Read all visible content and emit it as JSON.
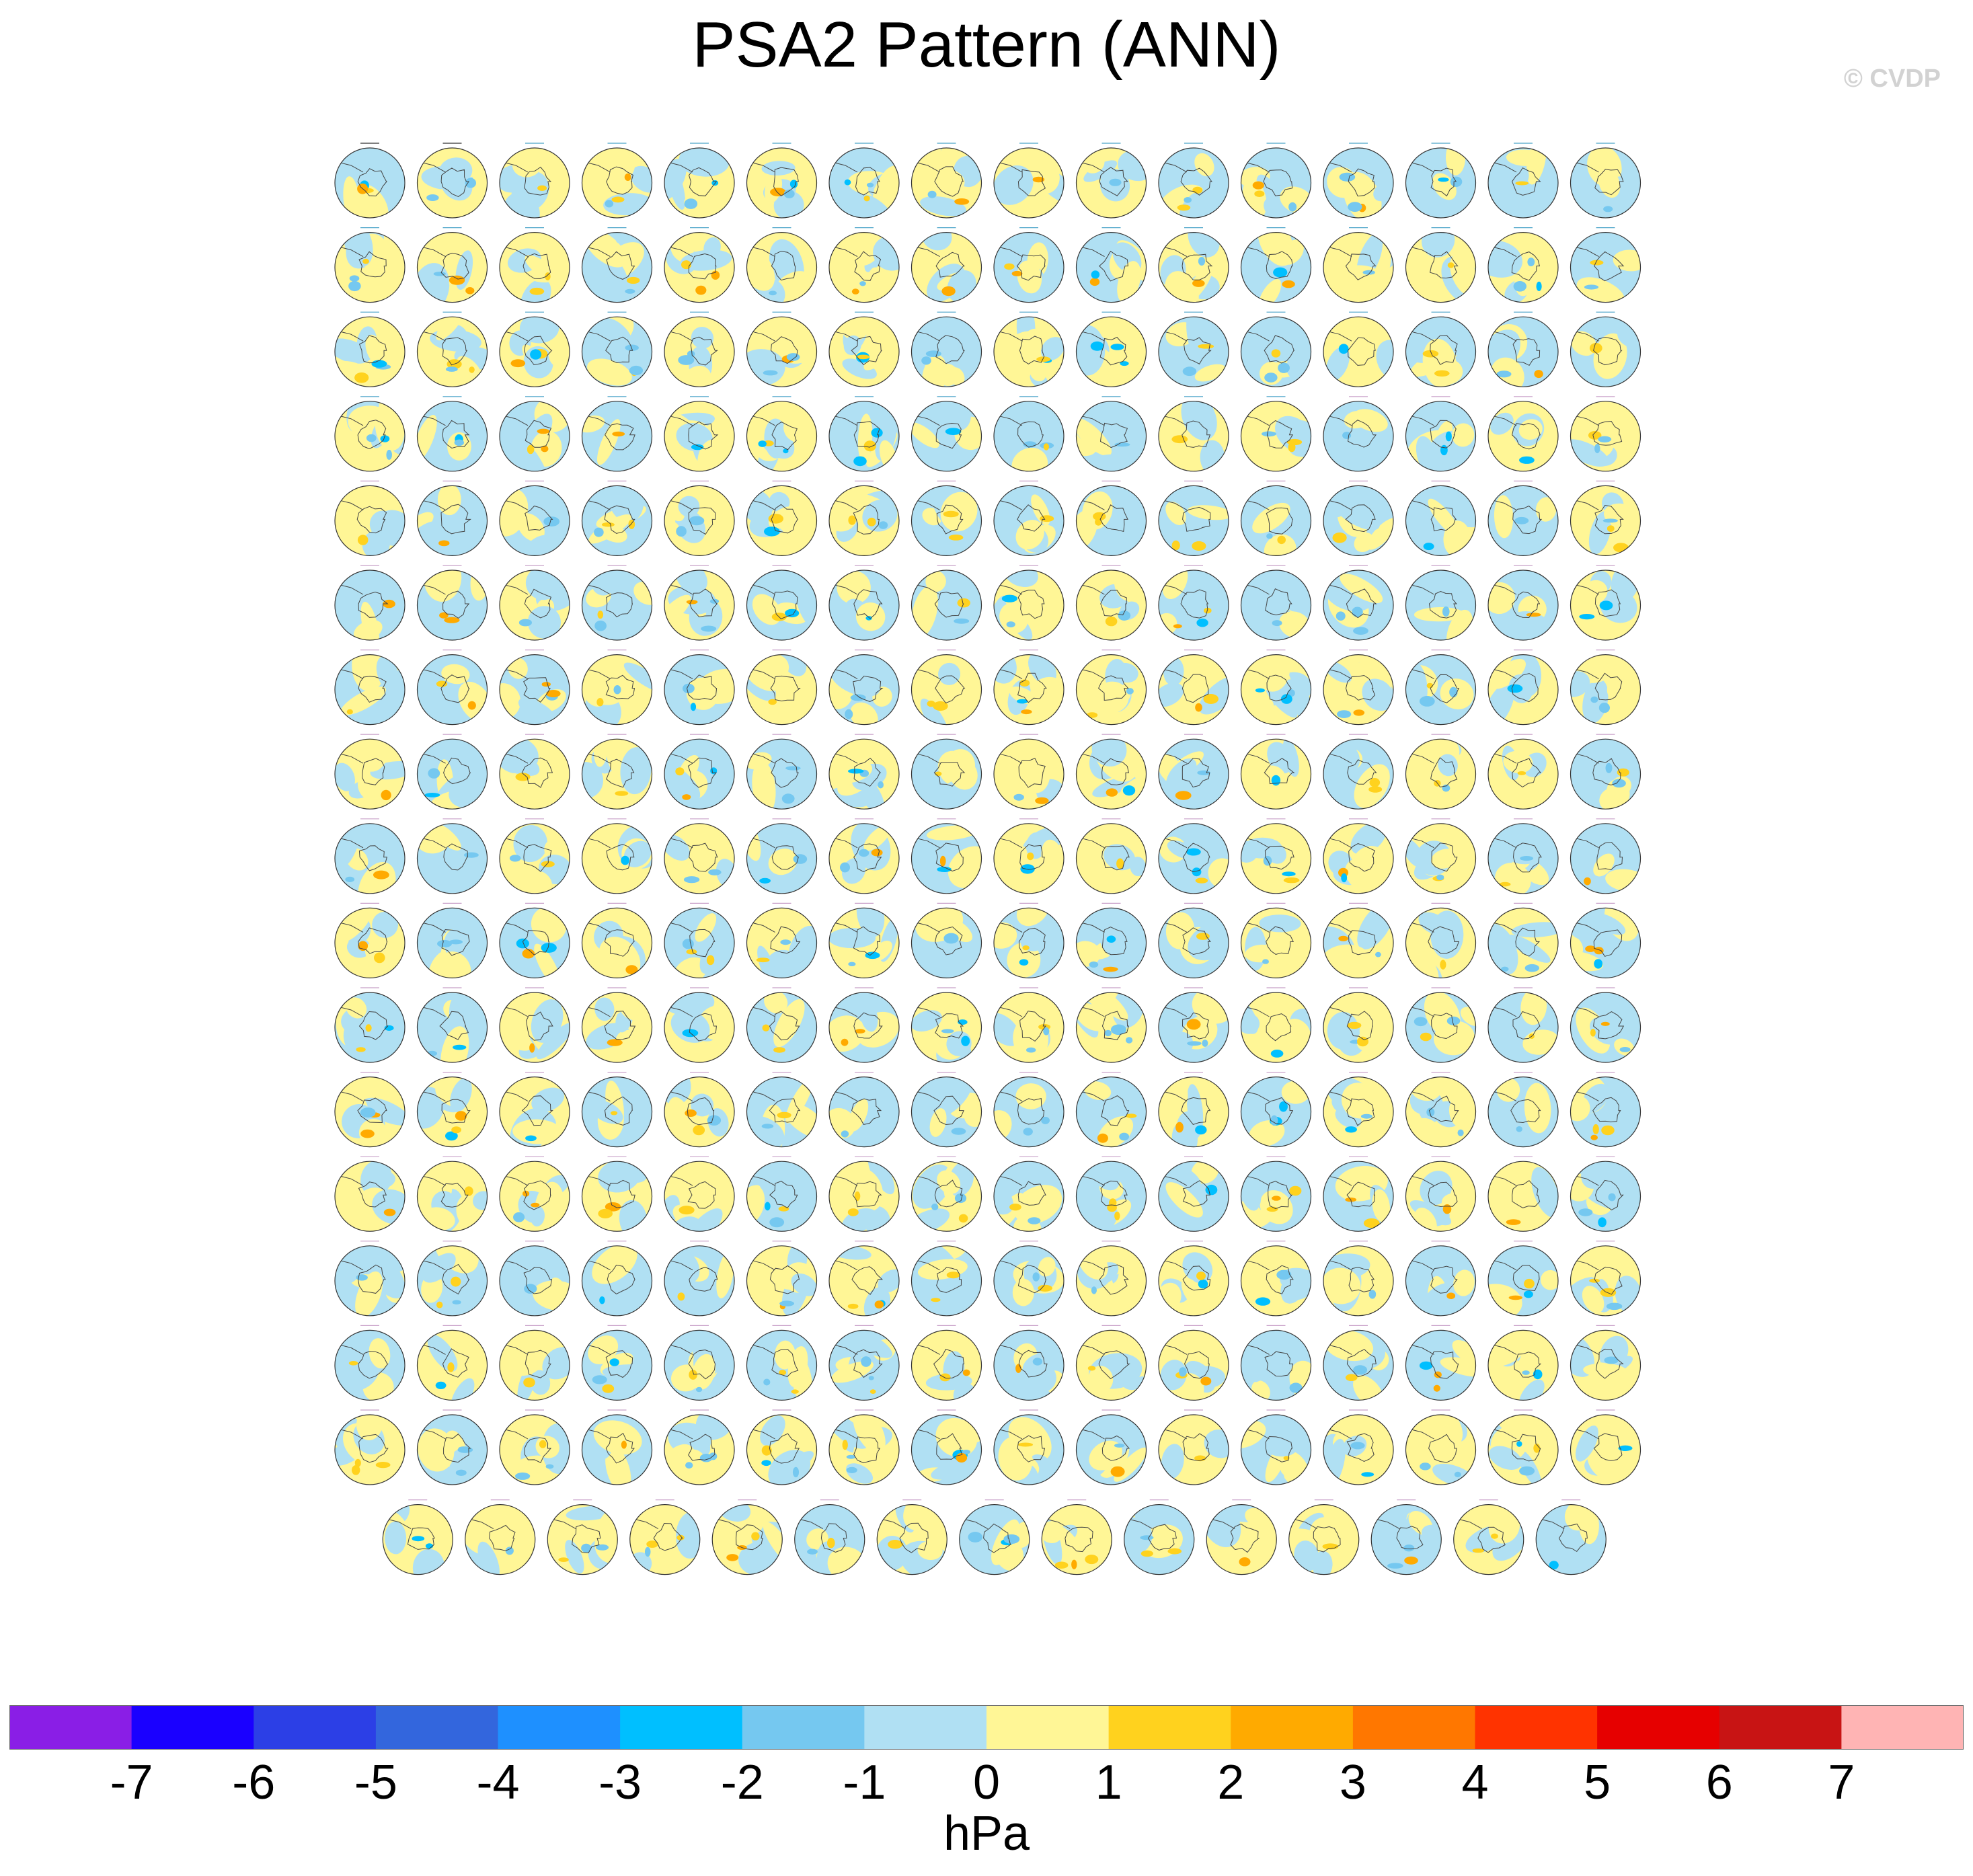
{
  "title": "PSA2 Pattern (ANN)",
  "copyright": "© CVDP",
  "chart_data": {
    "type": "heatmap",
    "title": "PSA2 Pattern (ANN)",
    "panel_layout": "small-multiples grid of south-polar stereographic maps",
    "rows_of_panels": 17,
    "panels_per_full_row": 16,
    "panels_in_last_row": 15,
    "colorbar": {
      "units_label": "hPa",
      "tick_labels": [
        "-7",
        "-6",
        "-5",
        "-4",
        "-3",
        "-2",
        "-1",
        "0",
        "1",
        "2",
        "3",
        "4",
        "5",
        "6",
        "7"
      ],
      "colors": [
        "#8a1ee6",
        "#1a00ff",
        "#2c3fe6",
        "#3366dd",
        "#1e90ff",
        "#00bfff",
        "#75c8f0",
        "#b0e0f3",
        "#fff696",
        "#ffd21e",
        "#ffaa00",
        "#ff7700",
        "#ff3300",
        "#e60000",
        "#c81414",
        "#ffb4b4"
      ]
    }
  }
}
